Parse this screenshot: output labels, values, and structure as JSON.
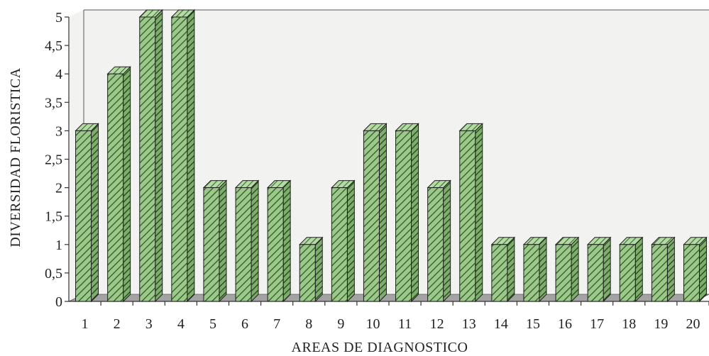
{
  "chart_data": {
    "type": "bar",
    "title": "",
    "xlabel": "AREAS DE DIAGNOSTICO",
    "ylabel": "DIVERSIDAD FLORISTICA",
    "categories": [
      "1",
      "2",
      "3",
      "4",
      "5",
      "6",
      "7",
      "8",
      "9",
      "10",
      "11",
      "12",
      "13",
      "14",
      "15",
      "16",
      "17",
      "18",
      "19",
      "20"
    ],
    "values": [
      3,
      4,
      5,
      5,
      2,
      2,
      2,
      1,
      2,
      3,
      3,
      2,
      3,
      1,
      1,
      1,
      1,
      1,
      1,
      1
    ],
    "ylim": [
      0,
      5
    ],
    "yticks": [
      "0",
      "0,5",
      "1",
      "1,5",
      "2",
      "2,5",
      "3",
      "3,5",
      "4",
      "4,5",
      "5"
    ],
    "grid": false,
    "bar_style": "3d-hatched",
    "colors": {
      "bar_fill": "#9cc98a",
      "hatch": "#2f5a28",
      "floor": "#9a9a9a",
      "plot_bg": "#f2f2f0"
    }
  }
}
